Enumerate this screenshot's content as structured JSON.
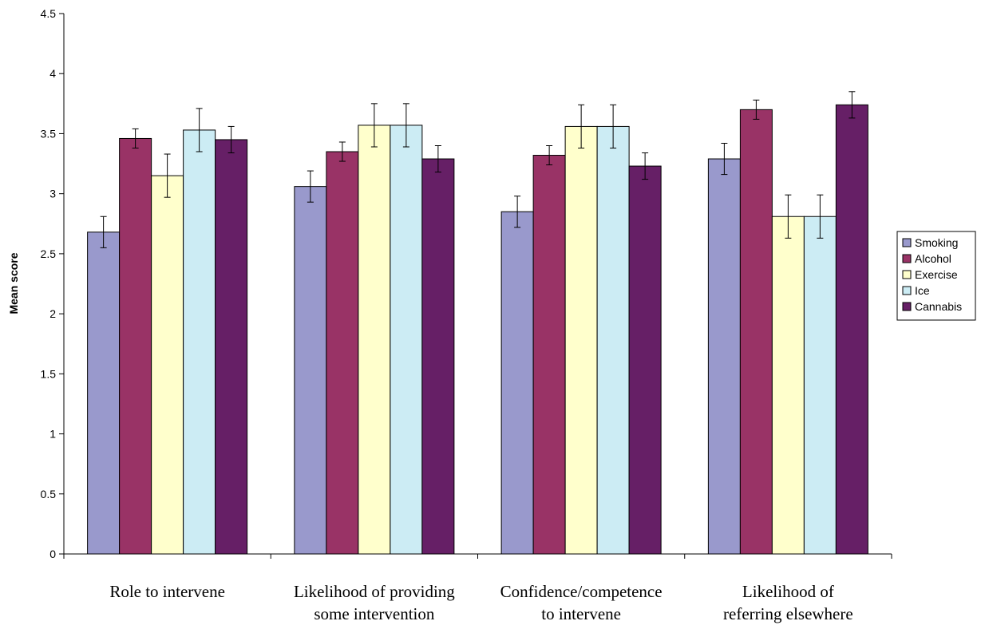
{
  "chart_data": {
    "type": "bar",
    "ylabel": "Mean score",
    "xlabel": "",
    "ylim": [
      0,
      4.5
    ],
    "yticks": [
      "0",
      "0.5",
      "1",
      "1.5",
      "2",
      "2.5",
      "3",
      "3.5",
      "4",
      "4.5"
    ],
    "grid": false,
    "legend_position": "right",
    "categories": [
      [
        "Role to intervene"
      ],
      [
        "Likelihood of providing",
        "some intervention"
      ],
      [
        "Confidence/competence",
        "to intervene"
      ],
      [
        "Likelihood of",
        "referring elsewhere"
      ]
    ],
    "series": [
      {
        "name": "Smoking",
        "color": "#9999CC",
        "values": [
          2.68,
          3.06,
          2.85,
          3.29
        ],
        "errors": [
          0.13,
          0.13,
          0.13,
          0.13
        ]
      },
      {
        "name": "Alcohol",
        "color": "#993366",
        "values": [
          3.46,
          3.35,
          3.32,
          3.7
        ],
        "errors": [
          0.08,
          0.08,
          0.08,
          0.08
        ]
      },
      {
        "name": "Exercise",
        "color": "#FFFFCC",
        "values": [
          3.15,
          3.57,
          3.56,
          2.81
        ],
        "errors": [
          0.18,
          0.18,
          0.18,
          0.18
        ]
      },
      {
        "name": "Ice",
        "color": "#CCECF4",
        "values": [
          3.53,
          3.57,
          3.56,
          2.81
        ],
        "errors": [
          0.18,
          0.18,
          0.18,
          0.18
        ]
      },
      {
        "name": "Cannabis",
        "color": "#661F66",
        "values": [
          3.45,
          3.29,
          3.23,
          3.74
        ],
        "errors": [
          0.11,
          0.11,
          0.11,
          0.11
        ]
      }
    ]
  }
}
